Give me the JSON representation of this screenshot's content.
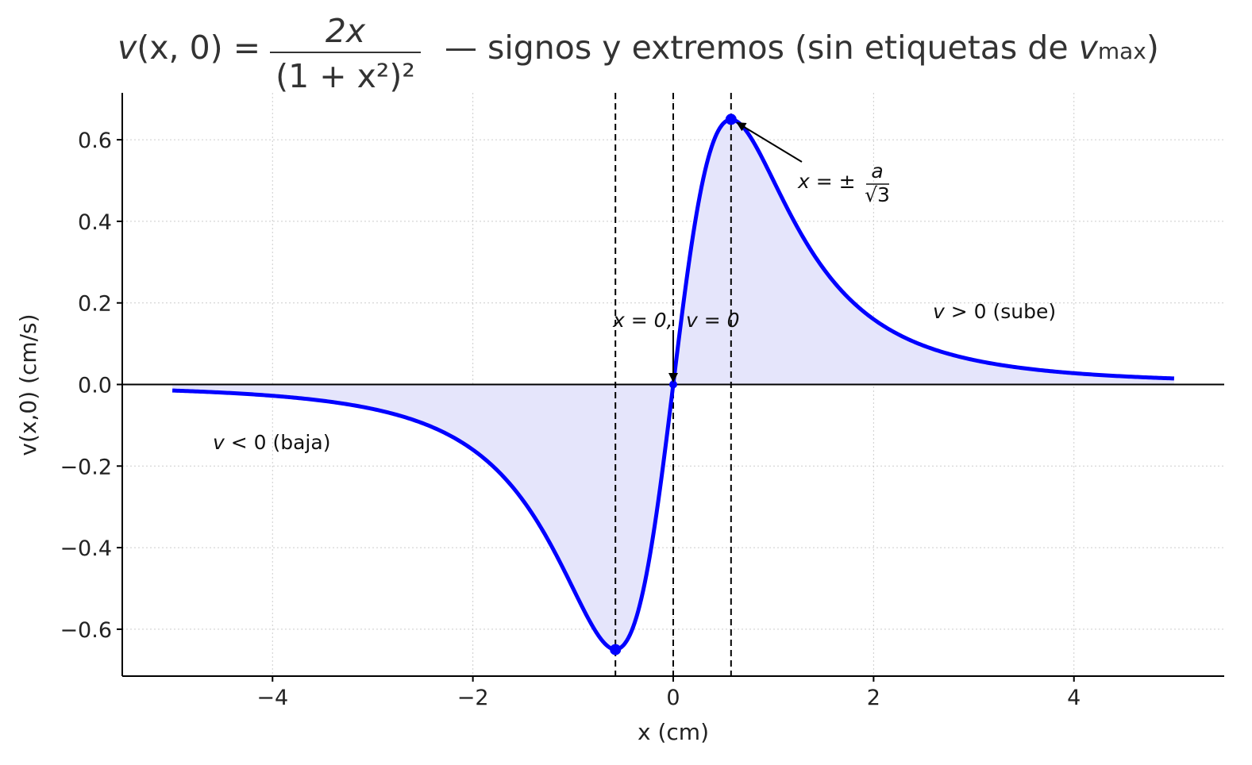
{
  "chart_data": {
    "type": "line",
    "title": {
      "lhs": "v",
      "lhs_args": "(x, 0) =",
      "numerator": "2x",
      "denominator": "(1 + x²)²",
      "text": "—  signos y extremos (sin etiquetas de ",
      "vmax_v": "v",
      "vmax_sub": "max",
      "close": ")"
    },
    "xlabel": "x (cm)",
    "ylabel": "v(x,0) (cm/s)",
    "xlim": [
      -5.5,
      5.5
    ],
    "ylim": [
      -0.715,
      0.715
    ],
    "x_ticks": [
      -4,
      -2,
      0,
      2,
      4
    ],
    "x_tick_labels": [
      "−4",
      "−2",
      "0",
      "2",
      "4"
    ],
    "y_ticks": [
      -0.6,
      -0.4,
      -0.2,
      0.0,
      0.2,
      0.4,
      0.6
    ],
    "y_tick_labels": [
      "−0.6",
      "−0.4",
      "−0.2",
      "0.0",
      "0.2",
      "0.4",
      "0.6"
    ],
    "grid": true,
    "x_domain": [
      -5,
      5
    ],
    "series": [
      {
        "function": "2x/(1+x^2)^2",
        "color": "#0000ff",
        "fill_color": "#e5e5fb"
      }
    ],
    "extrema": [
      {
        "x": -0.577,
        "y": -0.65
      },
      {
        "x": 0.0,
        "y": 0.0
      },
      {
        "x": 0.577,
        "y": 0.65
      }
    ],
    "vertical_lines": [
      -0.577,
      0.0,
      0.577
    ],
    "annotations": {
      "zero": {
        "x_part": "x = 0,",
        "v_part": "v = 0"
      },
      "extremum": {
        "prefix": "x = ±",
        "num": "a",
        "den": "√3"
      },
      "positive": {
        "v": "v",
        "rest": " > 0 (sube)"
      },
      "negative": {
        "v": "v",
        "rest": " < 0 (baja)"
      }
    },
    "colors": {
      "curve": "#0000ff",
      "fill": "#e5e5fb",
      "axis": "#000000",
      "grid": "#cccccc"
    }
  }
}
